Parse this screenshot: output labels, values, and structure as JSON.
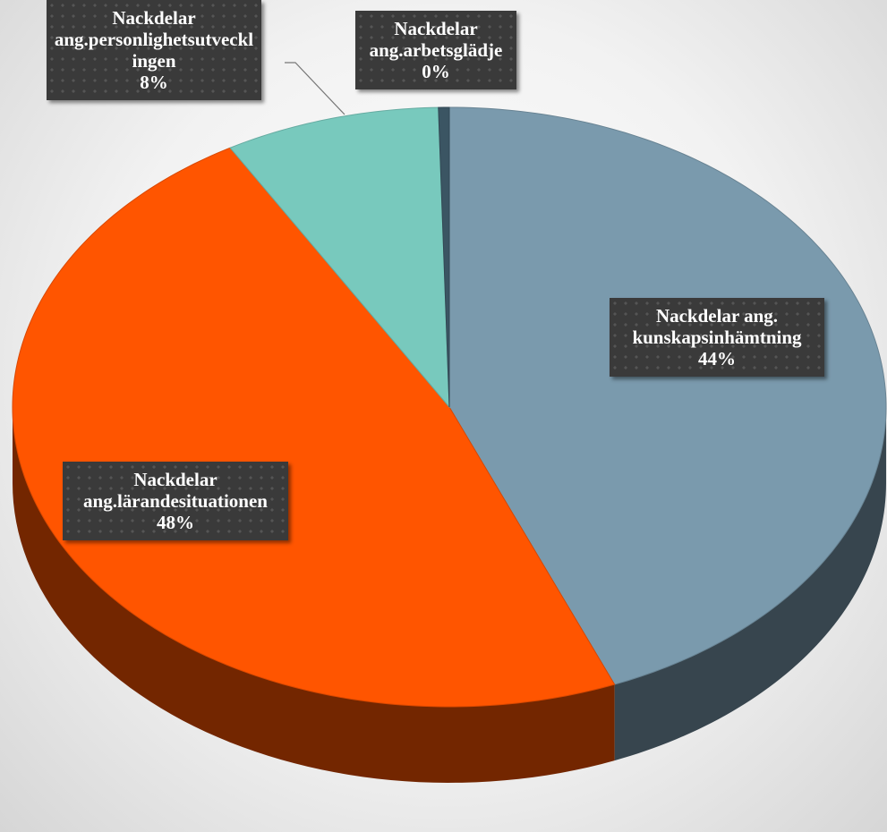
{
  "chart_data": {
    "type": "pie",
    "categories": [
      "Nackdelar ang. kunskapsinhämtning",
      "Nackdelar ang.lärandesituationen",
      "Nackdelar ang.personlighetsutvecklingen",
      "Nackdelar ang.arbetsglädje"
    ],
    "values": [
      44,
      48,
      8,
      0.4
    ],
    "value_labels": [
      "44%",
      "48%",
      "8%",
      "0%"
    ],
    "colors": [
      "#7a9aad",
      "#ff5500",
      "#78c9bd",
      "#3b5563"
    ]
  }
}
